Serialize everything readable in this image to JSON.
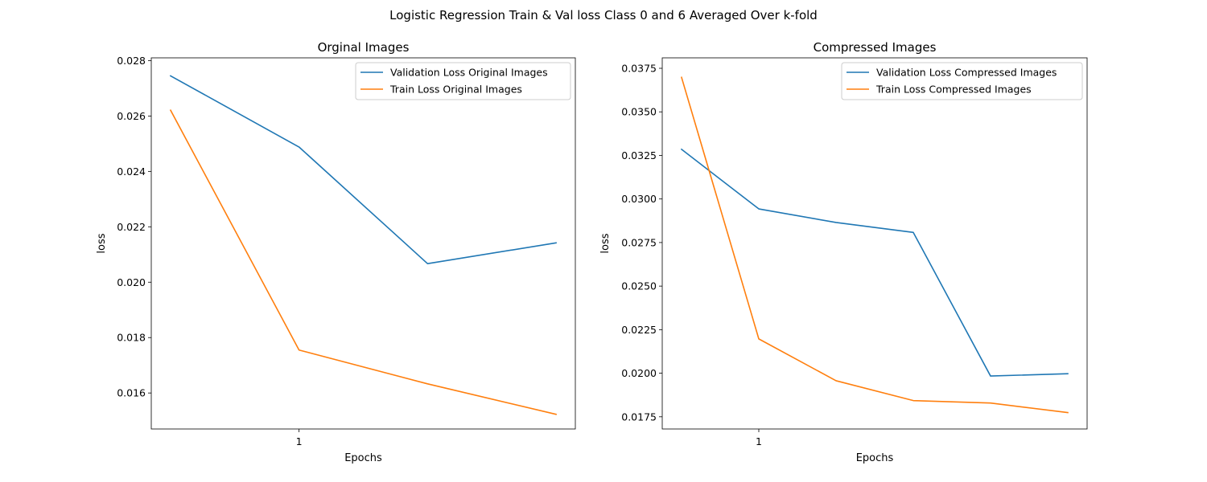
{
  "figure": {
    "suptitle": "Logistic Regression Train & Val loss Class 0 and 6 Averaged Over k-fold"
  },
  "chart_data": [
    {
      "type": "line",
      "title": "Orginal Images",
      "xlabel": "Epochs",
      "ylabel": "loss",
      "x": [
        0,
        1,
        2,
        3
      ],
      "xticks": [
        {
          "value": 1,
          "label": "1"
        }
      ],
      "xlim": [
        -0.15,
        3.15
      ],
      "ylim": [
        0.0147,
        0.0281
      ],
      "yticks": [
        {
          "value": 0.016,
          "label": "0.016"
        },
        {
          "value": 0.018,
          "label": "0.018"
        },
        {
          "value": 0.02,
          "label": "0.020"
        },
        {
          "value": 0.022,
          "label": "0.022"
        },
        {
          "value": 0.024,
          "label": "0.024"
        },
        {
          "value": 0.026,
          "label": "0.026"
        },
        {
          "value": 0.028,
          "label": "0.028"
        }
      ],
      "legend_position": "top-right",
      "series": [
        {
          "name": "Validation Loss Original Images",
          "color": "#1f77b4",
          "values": [
            0.02745,
            0.02488,
            0.02067,
            0.02142
          ]
        },
        {
          "name": "Train Loss Original Images",
          "color": "#ff7f0e",
          "values": [
            0.02621,
            0.01755,
            0.01633,
            0.01523
          ]
        }
      ]
    },
    {
      "type": "line",
      "title": "Compressed Images",
      "xlabel": "Epochs",
      "ylabel": "loss",
      "x": [
        0,
        1,
        2,
        3,
        4,
        5
      ],
      "xticks": [
        {
          "value": 1,
          "label": "1"
        }
      ],
      "xlim": [
        -0.25,
        5.25
      ],
      "ylim": [
        0.0168,
        0.0381
      ],
      "yticks": [
        {
          "value": 0.0175,
          "label": "0.0175"
        },
        {
          "value": 0.02,
          "label": "0.0200"
        },
        {
          "value": 0.0225,
          "label": "0.0225"
        },
        {
          "value": 0.025,
          "label": "0.0250"
        },
        {
          "value": 0.0275,
          "label": "0.0275"
        },
        {
          "value": 0.03,
          "label": "0.0300"
        },
        {
          "value": 0.0325,
          "label": "0.0325"
        },
        {
          "value": 0.035,
          "label": "0.0350"
        },
        {
          "value": 0.0375,
          "label": "0.0375"
        }
      ],
      "legend_position": "top-right",
      "series": [
        {
          "name": "Validation Loss Compressed Images",
          "color": "#1f77b4",
          "values": [
            0.03285,
            0.02943,
            0.02865,
            0.02808,
            0.01984,
            0.01997
          ]
        },
        {
          "name": "Train Loss Compressed Images",
          "color": "#ff7f0e",
          "values": [
            0.03698,
            0.02197,
            0.01957,
            0.01843,
            0.01829,
            0.01774
          ]
        }
      ]
    }
  ]
}
